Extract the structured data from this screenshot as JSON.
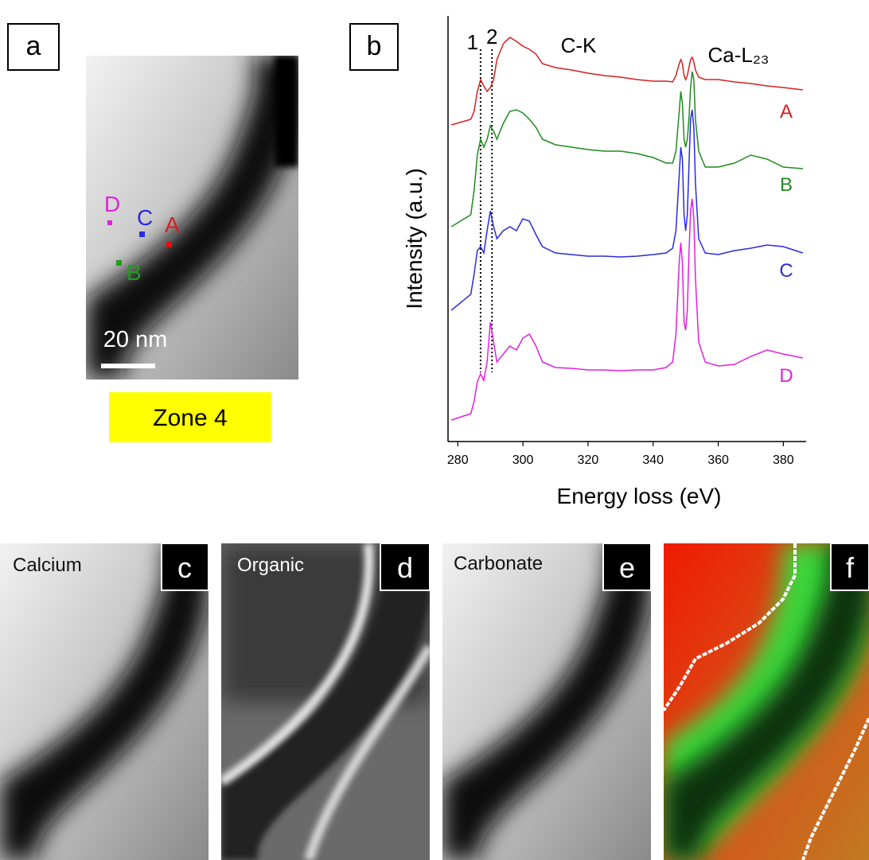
{
  "panel_a": {
    "letter": "a",
    "points": [
      "D",
      "C",
      "A",
      "B"
    ],
    "scale_bar": "20 nm",
    "zone": "Zone 4"
  },
  "panel_b": {
    "letter": "b"
  },
  "chart_data": {
    "type": "line",
    "x_label": "Energy loss (eV)",
    "y_label": "Intensity (a.u.)",
    "xlim": [
      277,
      387
    ],
    "xticks": [
      280,
      300,
      320,
      340,
      360,
      380
    ],
    "ylim": [
      0,
      520
    ],
    "peak_lines": [
      {
        "label": "1",
        "x": 287
      },
      {
        "label": "2",
        "x": 290.5
      }
    ],
    "annotations": [
      "C-K",
      "Ca-L₂₃"
    ],
    "x": [
      278,
      284,
      285,
      286,
      287,
      288,
      289,
      290,
      291,
      292,
      294,
      296,
      298,
      300,
      302,
      304,
      306,
      310,
      315,
      320,
      325,
      330,
      335,
      340,
      344,
      346,
      347,
      348,
      348.5,
      349,
      349.5,
      350,
      350.5,
      351,
      351.5,
      352,
      352.5,
      353,
      354,
      356,
      360,
      365,
      370,
      375,
      380,
      386
    ],
    "series": [
      {
        "name": "A",
        "color": "#d42020",
        "values": [
          398,
          405,
          415,
          440,
          455,
          447,
          440,
          445,
          455,
          480,
          500,
          508,
          503,
          497,
          493,
          487,
          475,
          470,
          467,
          463,
          460,
          458,
          455,
          453,
          453,
          452,
          460,
          475,
          480,
          475,
          460,
          455,
          460,
          470,
          480,
          483,
          477,
          467,
          458,
          455,
          455,
          452,
          450,
          447,
          445,
          442
        ]
      },
      {
        "name": "B",
        "color": "#1e8c1e",
        "values": [
          270,
          285,
          315,
          360,
          380,
          370,
          380,
          397,
          390,
          380,
          400,
          415,
          417,
          413,
          405,
          395,
          380,
          373,
          370,
          367,
          365,
          365,
          362,
          357,
          350,
          350,
          365,
          415,
          440,
          425,
          380,
          370,
          380,
          405,
          445,
          465,
          455,
          405,
          365,
          345,
          345,
          350,
          360,
          355,
          345,
          343
        ]
      },
      {
        "name": "C",
        "color": "#2a2ae0",
        "values": [
          165,
          185,
          210,
          240,
          245,
          237,
          265,
          290,
          270,
          255,
          265,
          270,
          265,
          280,
          277,
          260,
          245,
          237,
          235,
          233,
          233,
          232,
          233,
          235,
          237,
          243,
          265,
          335,
          370,
          355,
          285,
          265,
          285,
          345,
          405,
          417,
          395,
          325,
          255,
          237,
          235,
          240,
          243,
          247,
          245,
          237
        ]
      },
      {
        "name": "D",
        "color": "#e020e0",
        "values": [
          27,
          35,
          50,
          75,
          85,
          77,
          100,
          150,
          125,
          100,
          110,
          120,
          115,
          130,
          135,
          120,
          100,
          93,
          92,
          90,
          90,
          89,
          90,
          90,
          93,
          100,
          135,
          225,
          250,
          225,
          150,
          140,
          165,
          235,
          290,
          305,
          280,
          205,
          125,
          100,
          95,
          97,
          107,
          115,
          110,
          105
        ]
      }
    ]
  },
  "maps": [
    {
      "letter": "c",
      "title": "Calcium"
    },
    {
      "letter": "d",
      "title": "Organic"
    },
    {
      "letter": "e",
      "title": "Carbonate"
    },
    {
      "letter": "f"
    }
  ]
}
